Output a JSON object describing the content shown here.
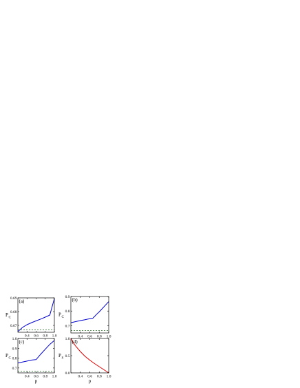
{
  "chart_data": [
    {
      "panel": "(a)",
      "type": "line",
      "xlabel": "",
      "ylabel": "P_C",
      "xlim": [
        0.2,
        1.0
      ],
      "ylim": [
        0.665,
        0.69
      ],
      "xticks": [
        "0.4",
        "0.6",
        "0.8",
        "1.0"
      ],
      "yticks": [
        "0.67",
        "0.68",
        "0.69"
      ],
      "series": [
        {
          "color": "#0000cc",
          "style": "solid",
          "x": [
            0.2,
            0.3,
            0.4,
            0.5,
            0.6,
            0.7,
            0.8,
            0.9,
            1.0
          ],
          "y": [
            0.6655,
            0.6685,
            0.6705,
            0.672,
            0.6733,
            0.6746,
            0.676,
            0.6775,
            0.6895
          ]
        },
        {
          "color": "#3a7a3a",
          "style": "dashed",
          "x": [
            0.2,
            1.0
          ],
          "y": [
            0.6667,
            0.6667
          ]
        }
      ]
    },
    {
      "panel": "(b)",
      "type": "line",
      "xlabel": "",
      "ylabel": "P_C",
      "xlim": [
        0.2,
        1.0
      ],
      "ylim": [
        0.65,
        0.9
      ],
      "xticks": [
        "0.4",
        "0.6",
        "0.8",
        "1.0"
      ],
      "yticks": [
        "0.7",
        "0.8",
        "0.9"
      ],
      "series": [
        {
          "color": "#0000cc",
          "style": "solid",
          "x": [
            0.2,
            0.3,
            0.4,
            0.5,
            0.6,
            0.667,
            0.75,
            0.8,
            0.9,
            1.0
          ],
          "y": [
            0.72,
            0.728,
            0.735,
            0.741,
            0.748,
            0.752,
            0.78,
            0.795,
            0.83,
            0.865
          ]
        },
        {
          "color": "#3a7a3a",
          "style": "dashed",
          "x": [
            0.2,
            1.0
          ],
          "y": [
            0.6667,
            0.6667
          ]
        }
      ]
    },
    {
      "panel": "(c)",
      "type": "line",
      "xlabel": "p",
      "ylabel": "P_C",
      "xlim": [
        0.2,
        1.0
      ],
      "ylim": [
        0.65,
        1.0
      ],
      "xticks": [
        "0.4",
        "0.6",
        "0.8",
        "1.0"
      ],
      "yticks": [
        "0.7",
        "0.8",
        "0.9",
        "1.0"
      ],
      "series": [
        {
          "color": "#0000cc",
          "style": "solid",
          "x": [
            0.2,
            0.3,
            0.4,
            0.5,
            0.6,
            0.7,
            0.8,
            0.9,
            1.0
          ],
          "y": [
            0.75,
            0.76,
            0.77,
            0.78,
            0.785,
            0.84,
            0.89,
            0.94,
            0.98
          ]
        },
        {
          "color": "#3a7a3a",
          "style": "dashed",
          "x": [
            0.2,
            1.0
          ],
          "y": [
            0.6667,
            0.6667
          ]
        }
      ]
    },
    {
      "panel": "(d)",
      "type": "line",
      "xlabel": "p",
      "ylabel": "P_S",
      "xlim": [
        0.2,
        1.0
      ],
      "ylim": [
        0.0,
        1.0
      ],
      "xticks": [
        "0.4",
        "0.6",
        "0.8",
        "1.0"
      ],
      "yticks": [
        "0.0",
        "0.5",
        "1.0"
      ],
      "series": [
        {
          "color": "#dd0000",
          "style": "solid",
          "x": [
            0.2,
            0.25,
            0.3,
            0.4,
            0.5,
            0.6,
            0.7,
            0.8,
            0.9,
            1.0
          ],
          "y": [
            1.0,
            0.88,
            0.78,
            0.62,
            0.48,
            0.37,
            0.27,
            0.18,
            0.09,
            0.0
          ]
        }
      ]
    }
  ]
}
